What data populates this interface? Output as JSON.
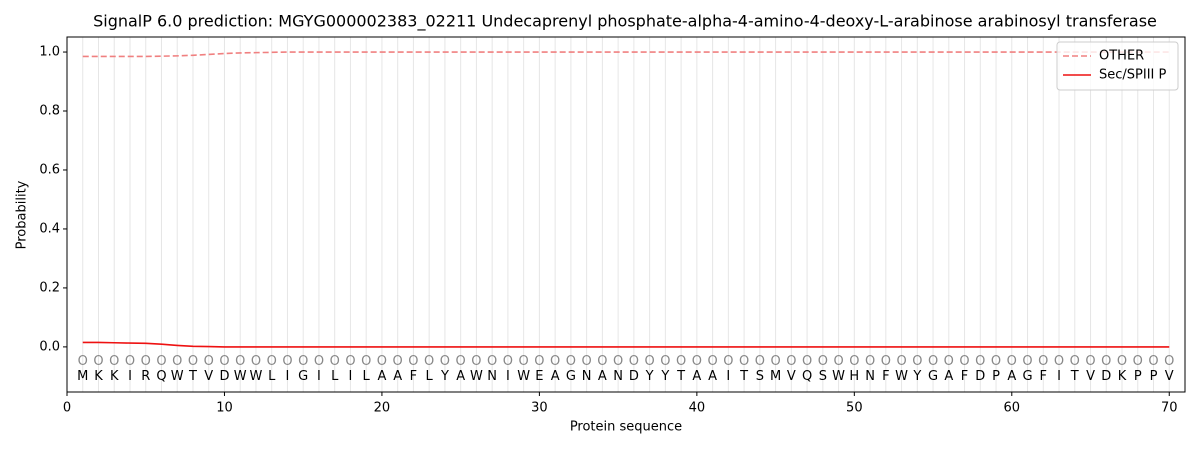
{
  "chart_data": {
    "type": "line",
    "title": "SignalP 6.0 prediction: MGYG000002383_02211 Undecaprenyl phosphate-alpha-4-amino-4-deoxy-L-arabinose arabinosyl transferase",
    "xlabel": "Protein sequence",
    "ylabel": "Probability",
    "x": [
      1,
      2,
      3,
      4,
      5,
      6,
      7,
      8,
      9,
      10,
      11,
      12,
      13,
      14,
      15,
      16,
      17,
      18,
      19,
      20,
      21,
      22,
      23,
      24,
      25,
      26,
      27,
      28,
      29,
      30,
      31,
      32,
      33,
      34,
      35,
      36,
      37,
      38,
      39,
      40,
      41,
      42,
      43,
      44,
      45,
      46,
      47,
      48,
      49,
      50,
      51,
      52,
      53,
      54,
      55,
      56,
      57,
      58,
      59,
      60,
      61,
      62,
      63,
      64,
      65,
      66,
      67,
      68,
      69,
      70
    ],
    "residues": [
      "M",
      "K",
      "K",
      "I",
      "R",
      "Q",
      "W",
      "T",
      "V",
      "D",
      "W",
      "W",
      "L",
      "I",
      "G",
      "I",
      "L",
      "I",
      "L",
      "A",
      "A",
      "F",
      "L",
      "Y",
      "A",
      "W",
      "N",
      "I",
      "W",
      "E",
      "A",
      "G",
      "N",
      "A",
      "N",
      "D",
      "Y",
      "Y",
      "T",
      "A",
      "A",
      "I",
      "T",
      "S",
      "M",
      "V",
      "Q",
      "S",
      "W",
      "H",
      "N",
      "F",
      "W",
      "Y",
      "G",
      "A",
      "F",
      "D",
      "P",
      "A",
      "G",
      "F",
      "I",
      "T",
      "V",
      "D",
      "K",
      "P",
      "P",
      "V"
    ],
    "states": [
      "O",
      "O",
      "O",
      "O",
      "O",
      "O",
      "O",
      "O",
      "O",
      "O",
      "O",
      "O",
      "O",
      "O",
      "O",
      "O",
      "O",
      "O",
      "O",
      "O",
      "O",
      "O",
      "O",
      "O",
      "O",
      "O",
      "O",
      "O",
      "O",
      "O",
      "O",
      "O",
      "O",
      "O",
      "O",
      "O",
      "O",
      "O",
      "O",
      "O",
      "O",
      "O",
      "O",
      "O",
      "O",
      "O",
      "O",
      "O",
      "O",
      "O",
      "O",
      "O",
      "O",
      "O",
      "O",
      "O",
      "O",
      "O",
      "O",
      "O",
      "O",
      "O",
      "O",
      "O",
      "O",
      "O",
      "O",
      "O",
      "O",
      "O"
    ],
    "series": [
      {
        "name": "OTHER",
        "color": "#f08080",
        "dash": true,
        "values": [
          0.985,
          0.985,
          0.985,
          0.985,
          0.985,
          0.986,
          0.987,
          0.989,
          0.992,
          0.995,
          0.997,
          0.998,
          0.999,
          1,
          1,
          1,
          1,
          1,
          1,
          1,
          1,
          1,
          1,
          1,
          1,
          1,
          1,
          1,
          1,
          1,
          1,
          1,
          1,
          1,
          1,
          1,
          1,
          1,
          1,
          1,
          1,
          1,
          1,
          1,
          1,
          1,
          1,
          1,
          1,
          1,
          1,
          1,
          1,
          1,
          1,
          1,
          1,
          1,
          1,
          1,
          1,
          1,
          1,
          1,
          1,
          1,
          1,
          1,
          1,
          1
        ]
      },
      {
        "name": "Sec/SPIII P",
        "color": "#ee1111",
        "dash": false,
        "values": [
          0.015,
          0.015,
          0.014,
          0.013,
          0.012,
          0.009,
          0.005,
          0.002,
          0.001,
          0,
          0,
          0,
          0,
          0,
          0,
          0,
          0,
          0,
          0,
          0,
          0,
          0,
          0,
          0,
          0,
          0,
          0,
          0,
          0,
          0,
          0,
          0,
          0,
          0,
          0,
          0,
          0,
          0,
          0,
          0,
          0,
          0,
          0,
          0,
          0,
          0,
          0,
          0,
          0,
          0,
          0,
          0,
          0,
          0,
          0,
          0,
          0,
          0,
          0,
          0,
          0,
          0,
          0,
          0,
          0,
          0,
          0,
          0,
          0,
          0
        ]
      }
    ],
    "xlim": [
      0,
      71
    ],
    "ylim": [
      -0.153,
      1.051
    ],
    "xticks": [
      0,
      10,
      20,
      30,
      40,
      50,
      60,
      70
    ],
    "yticks": [
      {
        "value": 0,
        "label": "0.0"
      },
      0.2,
      0.4,
      0.6,
      0.8,
      {
        "value": 1,
        "label": "1.0"
      }
    ],
    "legend": "upper right"
  }
}
